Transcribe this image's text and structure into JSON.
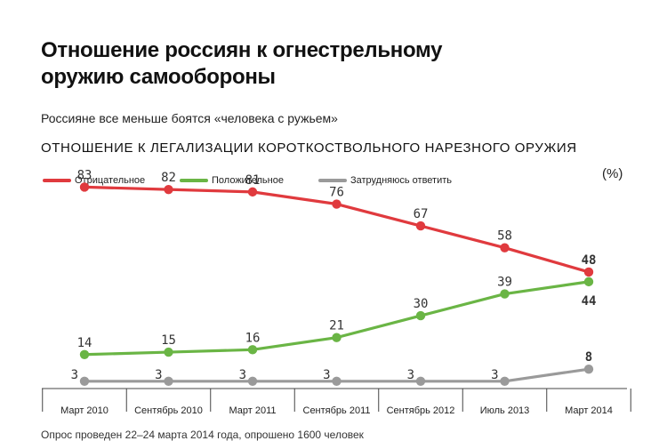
{
  "title_line1": "Отношение россиян к огнестрельному",
  "title_line2": "оружию самообороны",
  "subtitle": "Россияне все меньше боятся «человека с ружьем»",
  "section_title": "ОТНОШЕНИЕ К ЛЕГАЛИЗАЦИИ КОРОТКОСТВОЛЬНОГО НАРЕЗНОГО ОРУЖИЯ",
  "unit": "(%)",
  "footnote": "Опрос проведен 22–24 марта 2014 года, опрошено 1600 человек",
  "chart_data": {
    "type": "line",
    "title": "ОТНОШЕНИЕ К ЛЕГАЛИЗАЦИИ КОРОТКОСТВОЛЬНОГО НАРЕЗНОГО ОРУЖИЯ",
    "xlabel": "",
    "ylabel": "",
    "unit": "(%)",
    "categories": [
      "Март 2010",
      "Сентябрь 2010",
      "Март 2011",
      "Сентябрь 2011",
      "Сентябрь 2012",
      "Июль 2013",
      "Март 2014"
    ],
    "ylim": [
      0,
      100
    ],
    "grid": false,
    "legend_position": "top-left",
    "series": [
      {
        "name": "Отрицательное",
        "color": "#e03a3e",
        "values": [
          83,
          82,
          81,
          76,
          67,
          58,
          48
        ]
      },
      {
        "name": "Положительное",
        "color": "#6ab545",
        "values": [
          14,
          15,
          16,
          21,
          30,
          39,
          44
        ]
      },
      {
        "name": "Затрудняюсь ответить",
        "color": "#9a9a9a",
        "values": [
          3,
          3,
          3,
          3,
          3,
          3,
          8
        ]
      }
    ]
  }
}
